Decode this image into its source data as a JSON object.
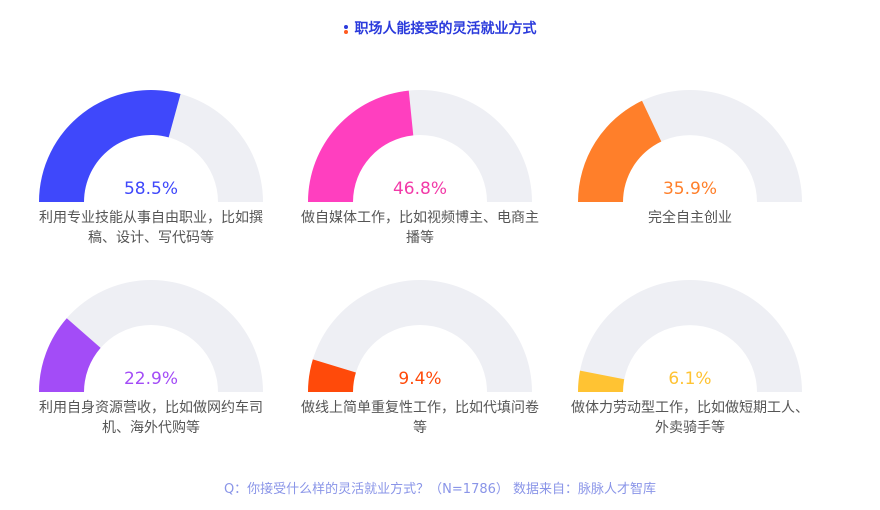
{
  "chart_data": {
    "type": "gauge",
    "title": "职场人能接受的灵活就业方式",
    "range": [
      0,
      100
    ],
    "track_color": "#eeeff4",
    "items": [
      {
        "label": "利用专业技能从事自由职业，比如撰稿、设计、写代码等",
        "value": 58.5,
        "value_label": "58.5%",
        "color": "#3f48fb",
        "text_color": "#3f48fb"
      },
      {
        "label": "做自媒体工作，比如视频博主、电商主播等",
        "value": 46.8,
        "value_label": "46.8%",
        "color": "#ff3fbf",
        "text_color": "#f23aa8"
      },
      {
        "label": "完全自主创业",
        "value": 35.9,
        "value_label": "35.9%",
        "color": "#ff7f2a",
        "text_color": "#ff7f2a"
      },
      {
        "label": "利用自身资源营收，比如做网约车司机、海外代购等",
        "value": 22.9,
        "value_label": "22.9%",
        "color": "#a34cf7",
        "text_color": "#a34cf7"
      },
      {
        "label": "做线上简单重复性工作，比如代填问卷等",
        "value": 9.4,
        "value_label": "9.4%",
        "color": "#ff4a0a",
        "text_color": "#ff4a0a"
      },
      {
        "label": "做体力劳动型工作，比如做短期工人、外卖骑手等",
        "value": 6.1,
        "value_label": "6.1%",
        "color": "#ffc333",
        "text_color": "#ffc333"
      }
    ]
  },
  "footnote": "Q：你接受什么样的灵活就业方式？（N=1786） 数据来自：脉脉人才智库",
  "colors": {
    "title": "#2b3bdc",
    "dot_top": "#2b3bdc",
    "dot_bottom": "#ff5a1f"
  }
}
